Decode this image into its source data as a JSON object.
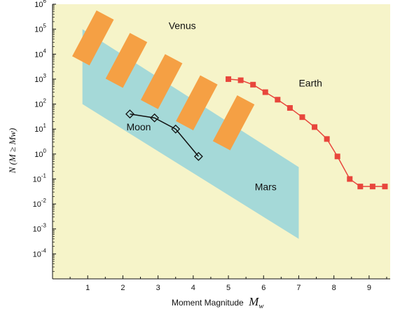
{
  "chart_data": {
    "type": "line",
    "title": "",
    "xlabel": "Moment Magnitude",
    "xlabel_symbol": "M",
    "xlabel_subscript": "w",
    "ylabel": "N (M ≥ Mw)",
    "xlim": [
      0,
      9.6
    ],
    "ylim_log10": [
      -5,
      6
    ],
    "log_y": true,
    "x_ticks": [
      "1",
      "2",
      "3",
      "4",
      "5",
      "6",
      "7",
      "8",
      "9"
    ],
    "y_tick_exponents": [
      "6",
      "5",
      "4",
      "3",
      "2",
      "1",
      "0",
      "-1",
      "-2",
      "-3",
      "-4"
    ],
    "y_tick_base": "10",
    "grid": false,
    "colors": {
      "plot_background": "#f6f4c9",
      "earth": "#e8463c",
      "moon": "#111111",
      "mars_region": "#a5d9d8",
      "venus_region": "#f5a044"
    },
    "series": [
      {
        "name": "Earth",
        "marker": "square",
        "x": [
          5.0,
          5.35,
          5.7,
          6.05,
          6.4,
          6.75,
          7.1,
          7.45,
          7.8,
          8.1,
          8.45,
          8.75,
          9.1,
          9.45
        ],
        "y": [
          1000,
          900,
          600,
          300,
          150,
          70,
          30,
          12,
          4,
          0.8,
          0.1,
          0.05,
          0.05,
          0.05
        ]
      },
      {
        "name": "Moon",
        "marker": "diamond",
        "x": [
          2.2,
          2.9,
          3.5,
          4.15
        ],
        "y": [
          40,
          28,
          10,
          0.8
        ]
      }
    ],
    "regions": [
      {
        "name": "Mars",
        "shape": "polygon",
        "points": [
          [
            0.85,
            100
          ],
          [
            0.85,
            100000
          ],
          [
            7.0,
            0.3
          ],
          [
            7.0,
            0.0004
          ]
        ]
      },
      {
        "name": "Venus",
        "shape": "tilted-bands",
        "bands": [
          {
            "x": 1.15,
            "logy": 4.65
          },
          {
            "x": 2.1,
            "logy": 3.75
          },
          {
            "x": 3.1,
            "logy": 2.9
          },
          {
            "x": 4.1,
            "logy": 2.05
          },
          {
            "x": 5.15,
            "logy": 1.25
          }
        ]
      }
    ],
    "annotations": [
      {
        "text": "Venus",
        "x": 3.3,
        "logy": 5.0
      },
      {
        "text": "Earth",
        "x": 7.0,
        "logy": 2.7
      },
      {
        "text": "Moon",
        "x": 2.1,
        "logy": 0.95
      },
      {
        "text": "Mars",
        "x": 5.75,
        "logy": -1.45
      }
    ]
  }
}
